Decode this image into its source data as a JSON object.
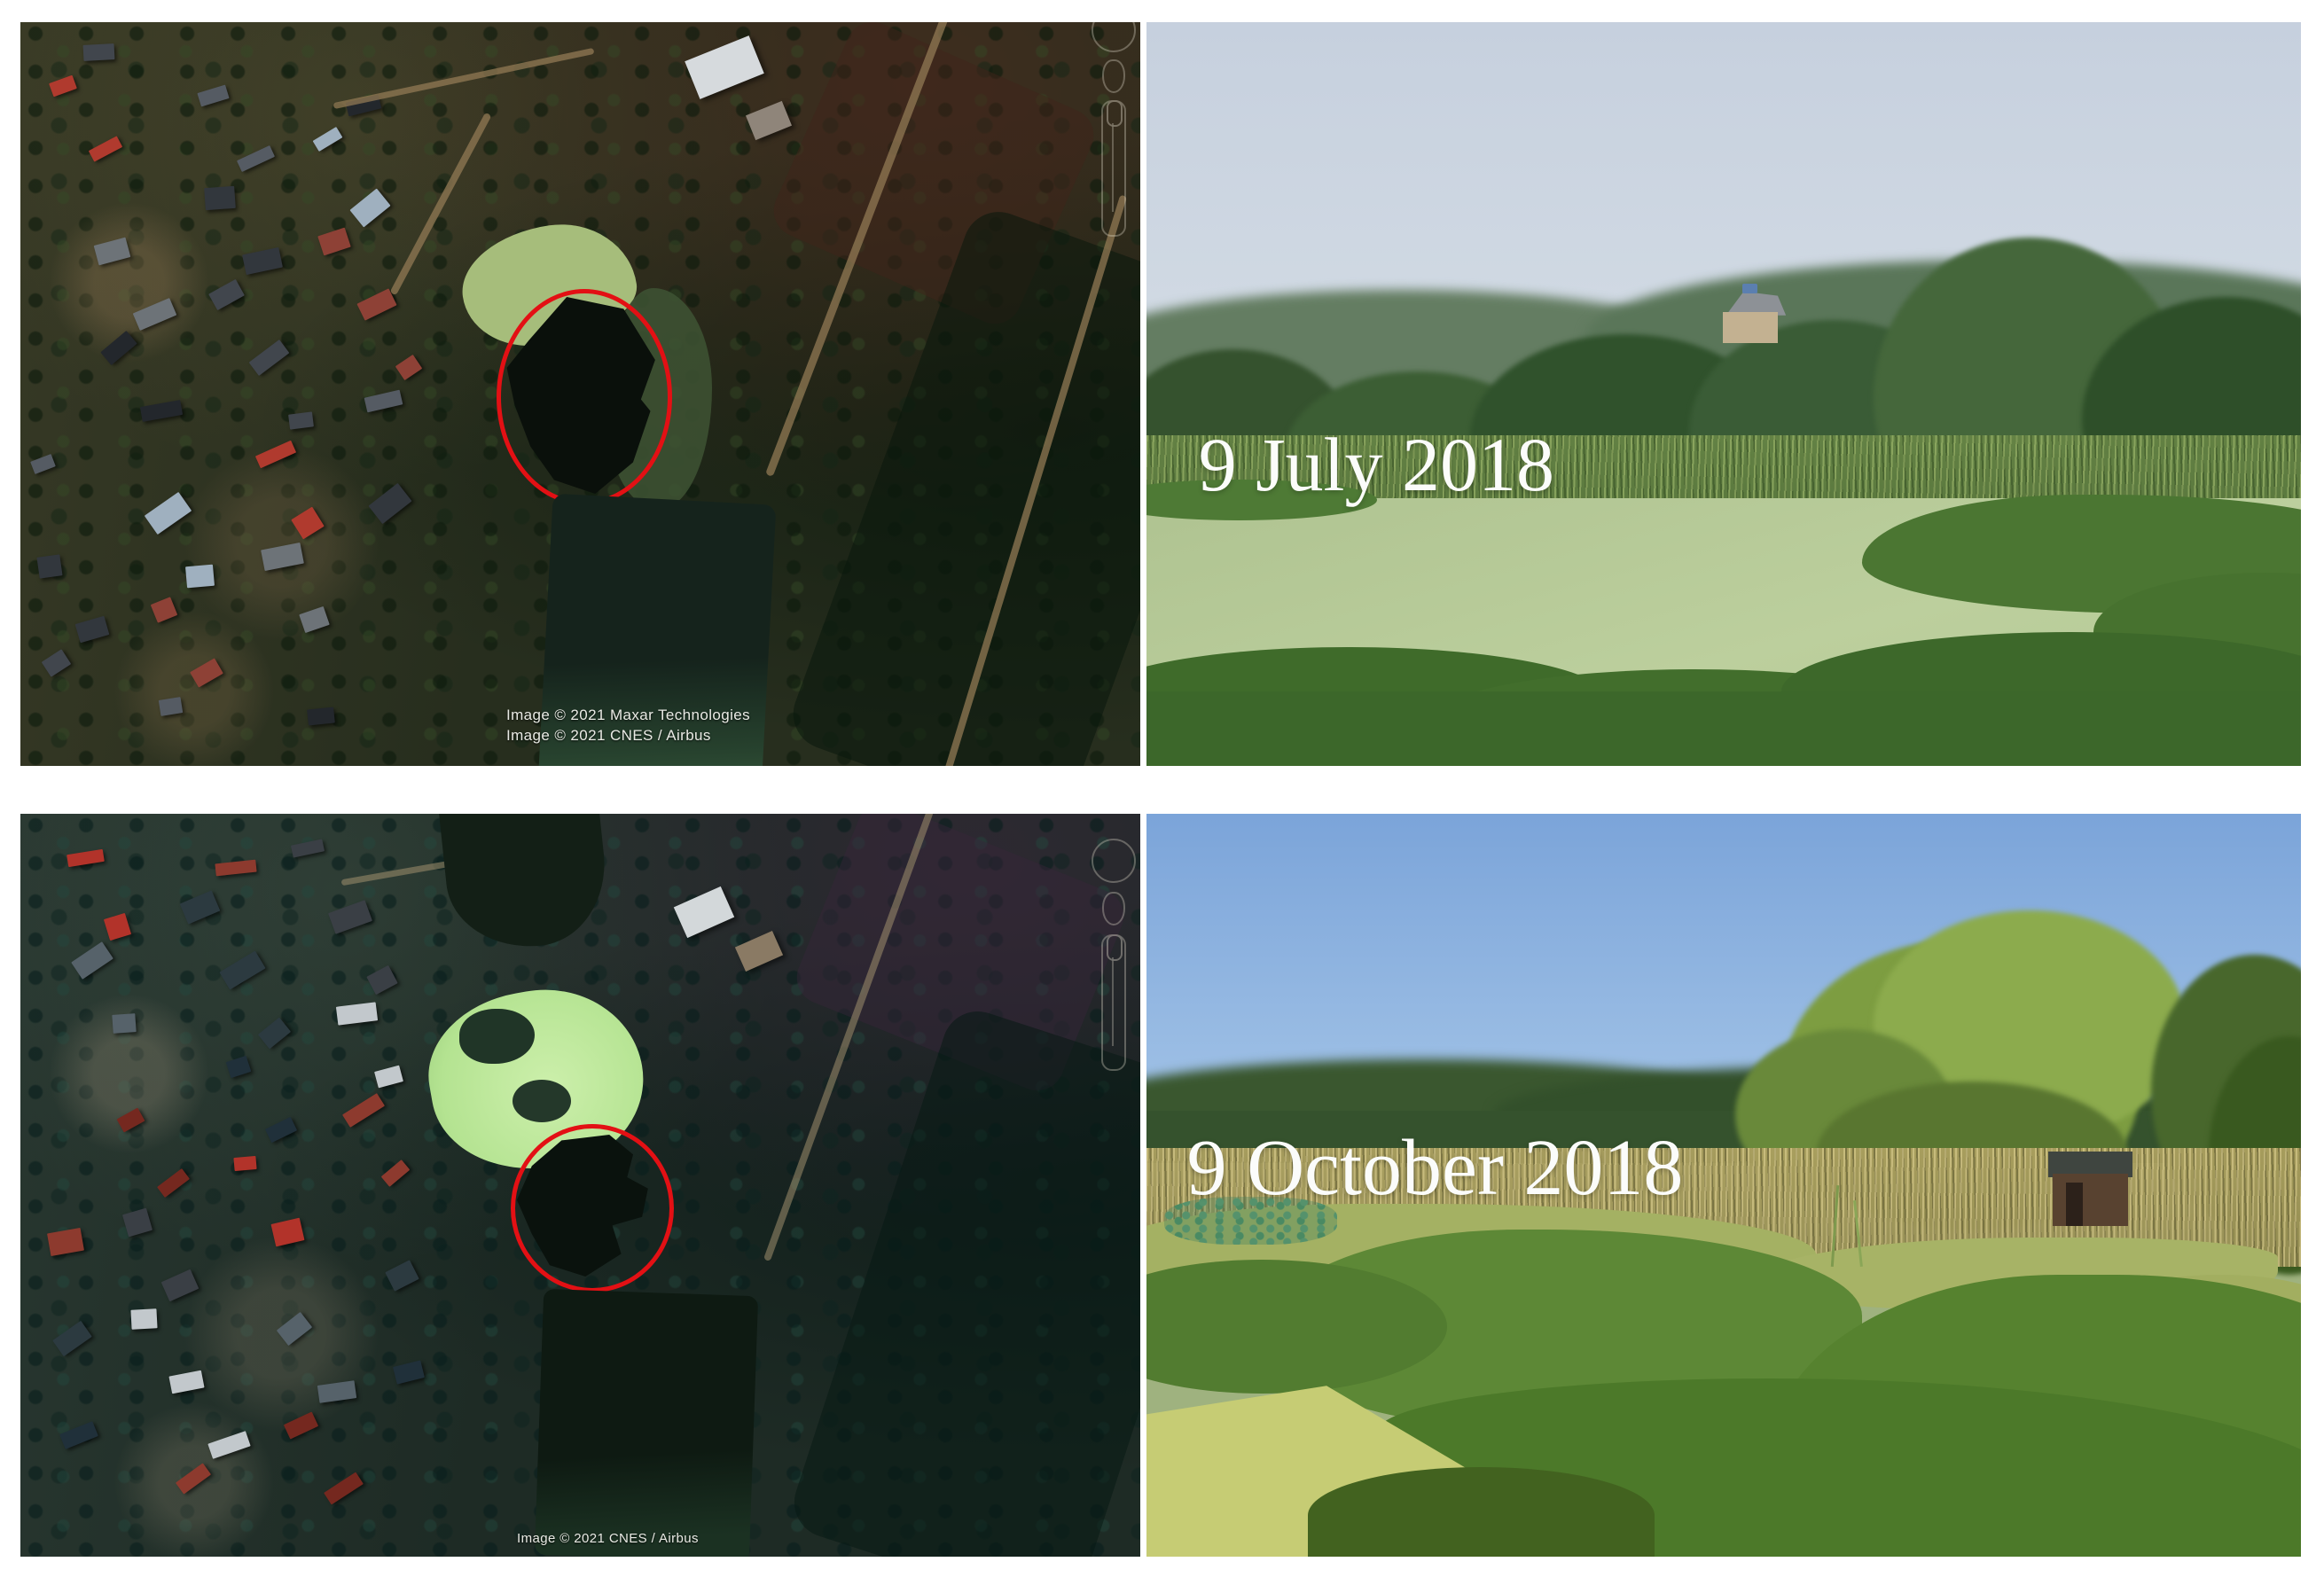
{
  "figure": {
    "background": "#ffffff",
    "annotation_color": "#e31014"
  },
  "panels": {
    "sat_top": {
      "attribution": [
        "Image © 2021 Maxar Technologies",
        "Image © 2021 CNES / Airbus"
      ]
    },
    "photo_top": {
      "label": "9 July 2018",
      "label_color": "#ffffff",
      "algae_color": "#b6ca97"
    },
    "sat_bottom": {
      "attribution": [
        "Image © 2021 CNES / Airbus"
      ]
    },
    "photo_bottom": {
      "label": "9 October 2018",
      "label_color": "#ffffff",
      "duckweed_color": "#a4b163"
    }
  }
}
